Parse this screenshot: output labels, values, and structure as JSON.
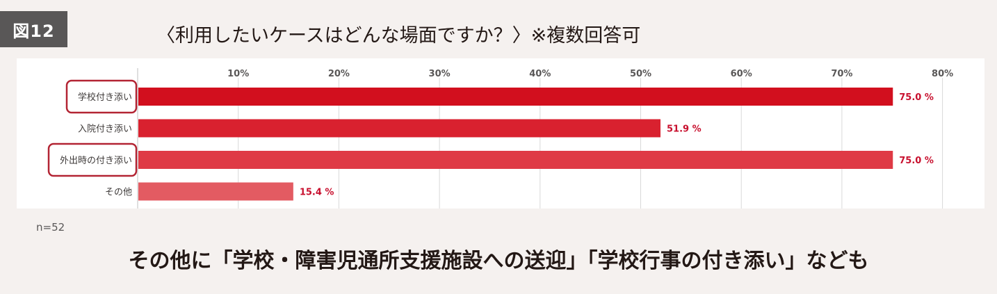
{
  "figure_label": "図12",
  "title": "〈利用したいケースはどんな場面ですか？〉※複数回答可",
  "note": "n=52",
  "footer": "その他に「学校・障害児通所支援施設への送迎」「学校行事の付き添い」なども",
  "colors": {
    "bar_colors": [
      "#d20f1e",
      "#d9212f",
      "#df3a45",
      "#e35b62"
    ],
    "value_label": "#c8102e",
    "highlight_box": "#b32433",
    "grid": "#d9d9d9"
  },
  "chart_data": {
    "type": "bar",
    "orientation": "horizontal",
    "categories": [
      "学校付き添い",
      "入院付き添い",
      "外出時の付き添い",
      "その他"
    ],
    "values": [
      75.0,
      51.9,
      75.0,
      15.4
    ],
    "value_labels": [
      "75.0 %",
      "51.9 %",
      "75.0 %",
      "15.4 %"
    ],
    "highlighted": [
      true,
      false,
      true,
      false
    ],
    "xlim": [
      0,
      80
    ],
    "ticks": [
      10,
      20,
      30,
      40,
      50,
      60,
      70,
      80
    ],
    "tick_labels": [
      "10%",
      "20%",
      "30%",
      "40%",
      "50%",
      "60%",
      "70%",
      "80%"
    ],
    "grid": true,
    "tick_position": "top"
  }
}
